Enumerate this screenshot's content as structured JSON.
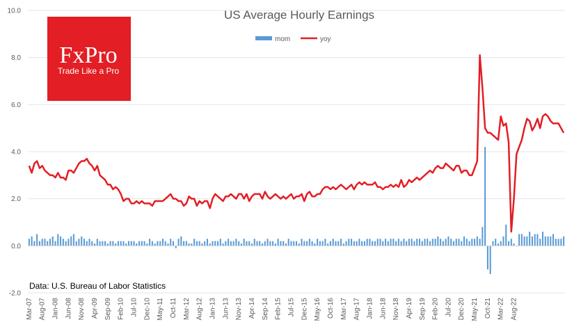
{
  "chart_data": {
    "type": "line",
    "title": "US Average Hourly Earnings",
    "xlabel": "",
    "ylabel": "",
    "ylim": [
      -2.0,
      10.0
    ],
    "y_ticks": [
      "10.0",
      "8.0",
      "6.0",
      "4.0",
      "2.0",
      "0.0",
      "-2.0"
    ],
    "x_tick_labels": [
      "Mar-07",
      "Aug-07",
      "Jan-08",
      "Jun-08",
      "Nov-08",
      "Apr-09",
      "Sep-09",
      "Feb-10",
      "Jul-10",
      "Dec-10",
      "May-11",
      "Oct-11",
      "Mar-12",
      "Aug-12",
      "Jan-13",
      "Jun-13",
      "Nov-13",
      "Apr-14",
      "Sep-14",
      "Feb-15",
      "Jul-15",
      "Dec-15",
      "May-16",
      "Oct-16",
      "Mar-17",
      "Aug-17",
      "Jan-18",
      "Jun-18",
      "Nov-18",
      "Apr-19",
      "Sep-19",
      "Feb-20",
      "Jul-20",
      "Dec-20",
      "May-21",
      "Oct-21",
      "Mar-22",
      "Aug-22"
    ],
    "x_start": "Mar-07",
    "grid": "horizontal",
    "legend_position": "top-center",
    "series": [
      {
        "name": "mom",
        "style": "bar",
        "color": "#5b9bd5",
        "values": [
          0.3,
          0.4,
          0.2,
          0.5,
          0.2,
          0.3,
          0.3,
          0.2,
          0.3,
          0.4,
          0.2,
          0.5,
          0.4,
          0.3,
          0.2,
          0.3,
          0.4,
          0.5,
          0.2,
          0.3,
          0.4,
          0.3,
          0.2,
          0.3,
          0.2,
          0.1,
          0.3,
          0.2,
          0.2,
          0.2,
          0.1,
          0.2,
          0.2,
          0.1,
          0.2,
          0.2,
          0.2,
          0.1,
          0.2,
          0.2,
          0.2,
          0.1,
          0.2,
          0.2,
          0.2,
          0.1,
          0.3,
          0.2,
          0.1,
          0.2,
          0.2,
          0.3,
          0.2,
          0.1,
          0.3,
          0.2,
          -0.1,
          0.3,
          0.4,
          0.2,
          0.2,
          0.1,
          0.1,
          0.3,
          0.2,
          0.2,
          0.1,
          0.2,
          0.3,
          0.1,
          0.2,
          0.2,
          0.2,
          0.3,
          0.1,
          0.2,
          0.3,
          0.2,
          0.2,
          0.3,
          0.2,
          0.1,
          0.3,
          0.2,
          0.2,
          0.1,
          0.3,
          0.2,
          0.2,
          0.1,
          0.2,
          0.3,
          0.2,
          0.2,
          0.1,
          0.3,
          0.2,
          0.2,
          0.1,
          0.3,
          0.2,
          0.2,
          0.2,
          0.1,
          0.3,
          0.2,
          0.2,
          0.3,
          0.2,
          0.1,
          0.3,
          0.2,
          0.2,
          0.3,
          0.1,
          0.2,
          0.3,
          0.2,
          0.2,
          0.3,
          0.1,
          0.2,
          0.3,
          0.3,
          0.2,
          0.2,
          0.3,
          0.2,
          0.2,
          0.3,
          0.3,
          0.2,
          0.2,
          0.3,
          0.3,
          0.2,
          0.3,
          0.2,
          0.3,
          0.3,
          0.2,
          0.3,
          0.2,
          0.3,
          0.2,
          0.3,
          0.3,
          0.2,
          0.3,
          0.3,
          0.2,
          0.3,
          0.3,
          0.2,
          0.3,
          0.3,
          0.4,
          0.3,
          0.2,
          0.3,
          0.4,
          0.3,
          0.2,
          0.3,
          0.3,
          0.2,
          0.4,
          0.3,
          0.2,
          0.3,
          0.3,
          0.4,
          0.3,
          0.8,
          4.2,
          -1.0,
          -1.2,
          0.2,
          0.3,
          0.1,
          0.2,
          0.4,
          0.9,
          0.2,
          0.3,
          0.1,
          0.0,
          0.5,
          0.5,
          0.4,
          0.4,
          0.6,
          0.4,
          0.5,
          0.5,
          0.3,
          0.6,
          0.4,
          0.4,
          0.4,
          0.5,
          0.3,
          0.3,
          0.3,
          0.4
        ]
      },
      {
        "name": "yoy",
        "style": "line",
        "color": "#e31e24",
        "values": [
          3.4,
          3.1,
          3.5,
          3.6,
          3.3,
          3.4,
          3.2,
          3.1,
          3.0,
          3.0,
          2.9,
          3.1,
          2.9,
          2.9,
          2.8,
          3.2,
          3.2,
          3.1,
          3.3,
          3.5,
          3.6,
          3.6,
          3.7,
          3.5,
          3.4,
          3.2,
          3.4,
          3.0,
          2.9,
          2.8,
          2.6,
          2.6,
          2.4,
          2.5,
          2.4,
          2.2,
          1.9,
          2.0,
          2.0,
          1.8,
          1.8,
          1.9,
          1.8,
          1.9,
          1.8,
          1.8,
          1.8,
          1.7,
          1.9,
          1.9,
          1.9,
          1.9,
          2.0,
          2.1,
          2.2,
          2.0,
          2.0,
          1.9,
          1.9,
          1.7,
          1.8,
          2.1,
          2.0,
          2.0,
          1.7,
          1.9,
          1.8,
          1.9,
          1.9,
          1.6,
          2.0,
          2.2,
          2.1,
          2.0,
          1.9,
          2.1,
          2.1,
          2.2,
          2.1,
          2.0,
          2.2,
          2.2,
          2.0,
          2.2,
          1.9,
          2.1,
          2.2,
          2.2,
          2.2,
          2.0,
          2.3,
          2.1,
          2.0,
          2.1,
          2.2,
          2.1,
          2.0,
          2.1,
          2.0,
          2.1,
          2.2,
          2.0,
          2.1,
          2.1,
          2.2,
          1.9,
          2.2,
          2.3,
          2.1,
          2.1,
          2.2,
          2.2,
          2.4,
          2.5,
          2.5,
          2.4,
          2.5,
          2.4,
          2.5,
          2.6,
          2.5,
          2.4,
          2.5,
          2.6,
          2.4,
          2.6,
          2.7,
          2.6,
          2.7,
          2.6,
          2.6,
          2.6,
          2.7,
          2.5,
          2.5,
          2.4,
          2.5,
          2.5,
          2.6,
          2.5,
          2.6,
          2.5,
          2.8,
          2.5,
          2.6,
          2.8,
          2.7,
          2.8,
          2.9,
          2.8,
          2.9,
          3.0,
          3.1,
          3.2,
          3.1,
          3.3,
          3.4,
          3.3,
          3.3,
          3.5,
          3.4,
          3.3,
          3.2,
          3.4,
          3.4,
          3.1,
          3.2,
          3.2,
          3.0,
          3.0,
          3.3,
          3.6,
          8.1,
          6.7,
          5.0,
          4.8,
          4.8,
          4.7,
          4.6,
          4.5,
          5.5,
          5.1,
          5.2,
          4.4,
          0.6,
          2.0,
          3.9,
          4.2,
          4.5,
          5.0,
          5.4,
          5.3,
          4.9,
          5.1,
          5.4,
          5.0,
          5.5,
          5.6,
          5.5,
          5.3,
          5.2,
          5.2,
          5.2,
          5.0,
          4.8
        ]
      }
    ]
  },
  "logo": {
    "brand": "FxPro",
    "tagline": "Trade Like a Pro",
    "color": "#e31e24"
  },
  "source_note": "Data: U.S. Bureau of Labor Statistics"
}
